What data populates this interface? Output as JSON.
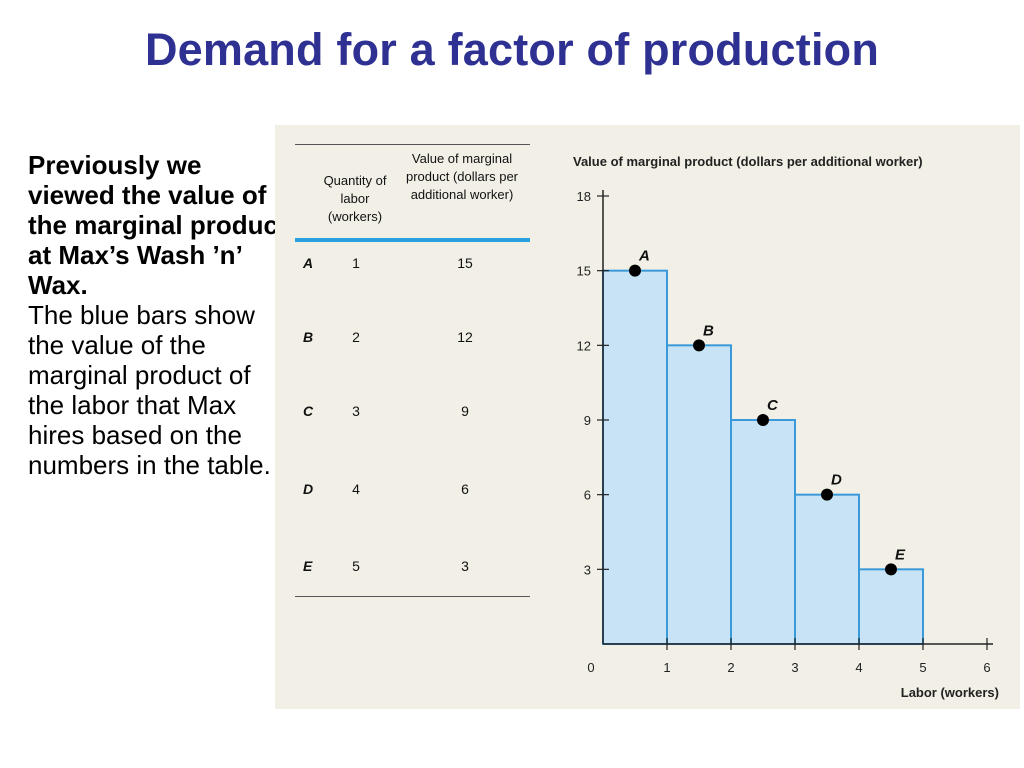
{
  "slide": {
    "title": "Demand for a factor of production",
    "intro_bold": "Previously we viewed the value of the marginal product at Max’s Wash ’n’ Wax.",
    "intro_plain": "The blue bars show the value of the marginal product of the labor that Max hires based on the numbers in the table."
  },
  "table": {
    "col1_header": "Quantity of labor (workers)",
    "col2_header": "Value of marginal product (dollars per additional worker)",
    "rows": [
      {
        "label": "A",
        "quantity": "1",
        "value": "15"
      },
      {
        "label": "B",
        "quantity": "2",
        "value": "12"
      },
      {
        "label": "C",
        "quantity": "3",
        "value": "9"
      },
      {
        "label": "D",
        "quantity": "4",
        "value": "6"
      },
      {
        "label": "E",
        "quantity": "5",
        "value": "3"
      }
    ]
  },
  "chart_data": {
    "type": "bar",
    "title": "Value of marginal product (dollars per additional worker)",
    "xlabel": "Labor (workers)",
    "ylabel": "Value of marginal product (dollars per additional worker)",
    "categories": [
      "1",
      "2",
      "3",
      "4",
      "5"
    ],
    "bars": [
      {
        "x0": 0,
        "x1": 1,
        "value": 15
      },
      {
        "x0": 1,
        "x1": 2,
        "value": 12
      },
      {
        "x0": 2,
        "x1": 3,
        "value": 9
      },
      {
        "x0": 3,
        "x1": 4,
        "value": 6
      },
      {
        "x0": 4,
        "x1": 5,
        "value": 3
      }
    ],
    "points": [
      {
        "label": "A",
        "x": 0.5,
        "y": 15
      },
      {
        "label": "B",
        "x": 1.5,
        "y": 12
      },
      {
        "label": "C",
        "x": 2.5,
        "y": 9
      },
      {
        "label": "D",
        "x": 3.5,
        "y": 6
      },
      {
        "label": "E",
        "x": 4.5,
        "y": 3
      }
    ],
    "xlim": [
      0,
      6
    ],
    "ylim": [
      0,
      18
    ],
    "x_ticks": [
      "0",
      "1",
      "2",
      "3",
      "4",
      "5",
      "6"
    ],
    "y_ticks": [
      "3",
      "6",
      "9",
      "12",
      "15",
      "18"
    ],
    "grid": false,
    "colors": {
      "bar_fill": "#c8e3f5",
      "bar_edge": "#3a9ad9",
      "axis": "#222222",
      "point": "#000000"
    }
  }
}
